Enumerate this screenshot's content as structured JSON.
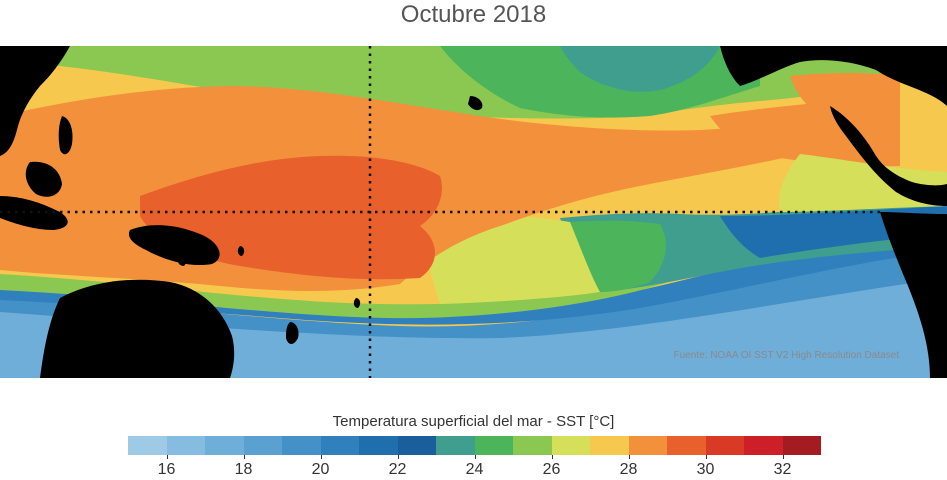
{
  "title": "Octubre 2018",
  "source": "Fuente: NOAA OI SST V2 High Resolution Dataset",
  "colorbar": {
    "label": "Temperatura superficial del mar - SST  [°C]",
    "range": [
      15,
      33
    ],
    "bin_width": 1,
    "ticks": [
      "16",
      "18",
      "20",
      "22",
      "24",
      "26",
      "28",
      "30",
      "32"
    ],
    "tick_values": [
      16,
      18,
      20,
      22,
      24,
      26,
      28,
      30,
      32
    ],
    "colors": [
      "#9ecae6",
      "#86bcdf",
      "#6faed8",
      "#5aa0d1",
      "#4491c8",
      "#2f80bd",
      "#1f6faf",
      "#1a5f9c",
      "#3f9e8e",
      "#4cb45a",
      "#8bc851",
      "#d6df5a",
      "#f6c94e",
      "#f3903c",
      "#e8612c",
      "#d93a26",
      "#cc1f27",
      "#a51b22"
    ]
  },
  "map": {
    "land_color": "#000000",
    "reference_line_style": "dotted",
    "regions": {
      "warm_pool": "#e8612c",
      "warm": "#f3903c",
      "subtropical": "#f6c94e",
      "transition": "#d6df5a",
      "green": "#8bc851",
      "cool_green": "#4cb45a",
      "teal": "#3f9e8e",
      "cold_blue": "#2f80bd",
      "colder_blue": "#4491c8",
      "coldest_blue": "#6faed8"
    }
  }
}
